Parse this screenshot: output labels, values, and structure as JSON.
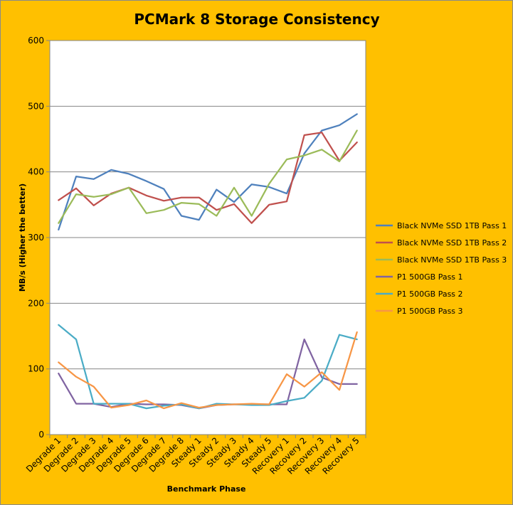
{
  "chart_data": {
    "type": "line",
    "title": "PCMark 8 Storage Consistency",
    "xlabel": "Benchmark Phase",
    "ylabel": "MB/s (Higher the better)",
    "ylim": [
      0,
      600
    ],
    "yticks": [
      0,
      100,
      200,
      300,
      400,
      500,
      600
    ],
    "grid": true,
    "legend_position": "right",
    "categories": [
      "Degrade 1",
      "Degrade 2",
      "Degrade 3",
      "Degrade 4",
      "Degrade 5",
      "Degrade 6",
      "Degrade 7",
      "Degrade 8",
      "Steady 1",
      "Steady 2",
      "Steady 3",
      "Steady 4",
      "Steady 5",
      "Recovery 1",
      "Recovery 2",
      "Recovery 3",
      "Recovery 4",
      "Recovery 5"
    ],
    "series": [
      {
        "name": "Black NVMe SSD 1TB Pass 1",
        "color": "#4F81BD",
        "values": [
          312,
          393,
          389,
          403,
          397,
          386,
          374,
          333,
          327,
          373,
          354,
          381,
          377,
          367,
          428,
          463,
          471,
          488
        ]
      },
      {
        "name": "Black NVMe SSD 1TB Pass 2",
        "color": "#C0504D",
        "values": [
          357,
          375,
          349,
          367,
          376,
          364,
          356,
          361,
          361,
          342,
          351,
          322,
          350,
          355,
          456,
          460,
          417,
          445
        ]
      },
      {
        "name": "Black NVMe SSD 1TB Pass 3",
        "color": "#9BBB59",
        "values": [
          322,
          366,
          362,
          366,
          376,
          337,
          342,
          353,
          351,
          333,
          376,
          333,
          382,
          419,
          425,
          434,
          416,
          463
        ]
      },
      {
        "name": "P1 500GB Pass 1",
        "color": "#8064A2",
        "values": [
          93,
          47,
          47,
          42,
          47,
          46,
          46,
          45,
          40,
          45,
          46,
          46,
          46,
          46,
          145,
          87,
          77,
          77
        ]
      },
      {
        "name": "P1 500GB Pass 2",
        "color": "#4BACC6",
        "values": [
          167,
          145,
          47,
          47,
          47,
          40,
          44,
          46,
          40,
          47,
          46,
          45,
          45,
          51,
          56,
          82,
          152,
          145
        ]
      },
      {
        "name": "P1 500GB Pass 3",
        "color": "#F79646",
        "values": [
          110,
          88,
          73,
          41,
          45,
          52,
          40,
          48,
          41,
          45,
          46,
          47,
          46,
          92,
          73,
          95,
          68,
          156
        ]
      }
    ]
  }
}
